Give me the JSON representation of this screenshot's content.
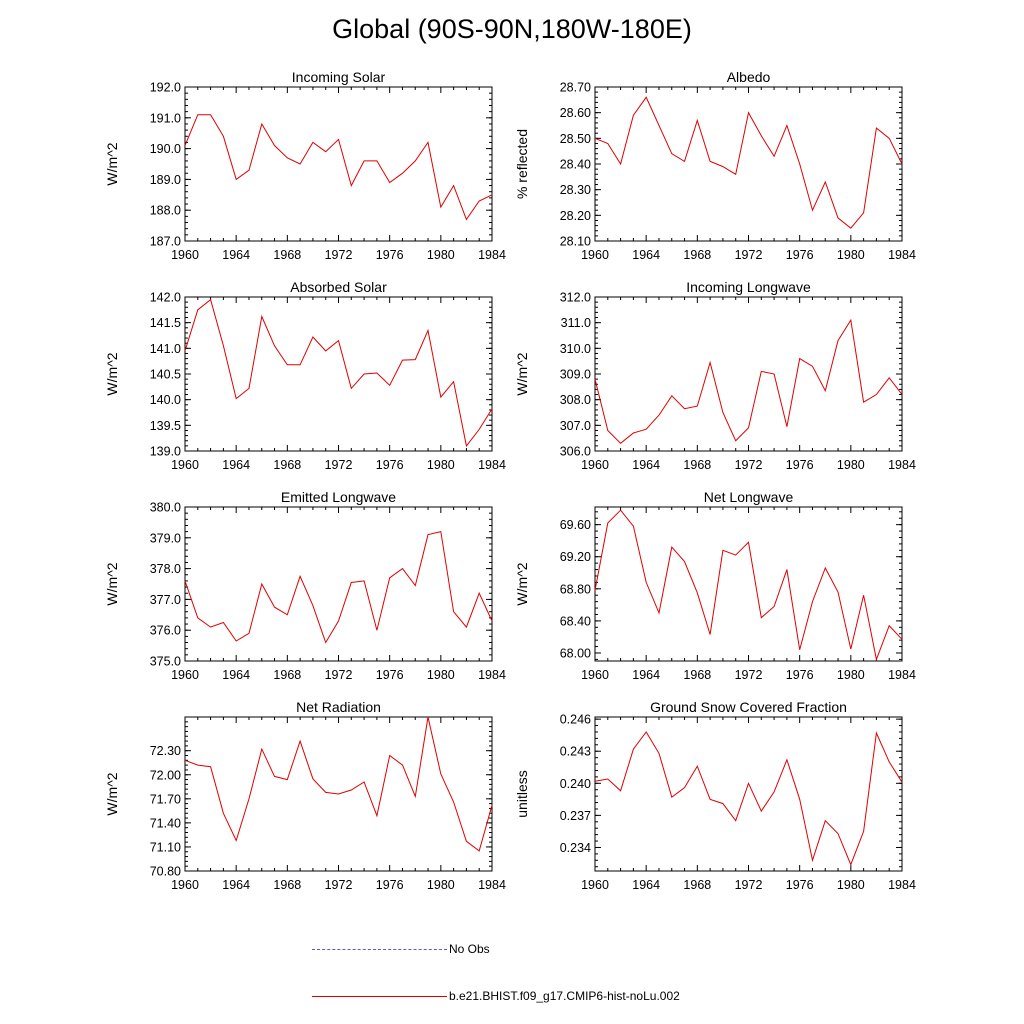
{
  "title": "Global (90S-90N,180W-180E)",
  "colors": {
    "model_line": "#e00000",
    "obs_line": "#5060c8",
    "axis": "#000000"
  },
  "legend": {
    "obs_label": "No Obs",
    "model_label": "b.e21.BHIST.f09_g17.CMIP6-hist-noLu.002"
  },
  "chart_data": [
    {
      "type": "line",
      "title": "Incoming Solar",
      "ylabel": "W/m^2",
      "xlim": [
        1960,
        1984
      ],
      "ylim": [
        187.0,
        192.0
      ],
      "xticks": [
        "1960",
        "1964",
        "1968",
        "1972",
        "1976",
        "1980",
        "1984"
      ],
      "yticks": [
        "187.0",
        "188.0",
        "189.0",
        "190.0",
        "191.0",
        "192.0"
      ],
      "x": [
        1960,
        1961,
        1962,
        1963,
        1964,
        1965,
        1966,
        1967,
        1968,
        1969,
        1970,
        1971,
        1972,
        1973,
        1974,
        1975,
        1976,
        1977,
        1978,
        1979,
        1980,
        1981,
        1982,
        1983,
        1984
      ],
      "series": [
        {
          "name": "b.e21.BHIST.f09_g17.CMIP6-hist-noLu.002",
          "values": [
            190.1,
            191.1,
            191.1,
            190.4,
            189.0,
            189.3,
            190.8,
            190.1,
            189.7,
            189.5,
            190.2,
            189.9,
            190.3,
            188.8,
            189.6,
            189.6,
            188.9,
            189.2,
            189.6,
            190.2,
            188.1,
            188.8,
            187.7,
            188.3,
            188.5
          ]
        }
      ]
    },
    {
      "type": "line",
      "title": "Albedo",
      "ylabel": "% reflected",
      "xlim": [
        1960,
        1984
      ],
      "ylim": [
        28.1,
        28.7
      ],
      "xticks": [
        "1960",
        "1964",
        "1968",
        "1972",
        "1976",
        "1980",
        "1984"
      ],
      "yticks": [
        "28.10",
        "28.20",
        "28.30",
        "28.40",
        "28.50",
        "28.60",
        "28.70"
      ],
      "x": [
        1960,
        1961,
        1962,
        1963,
        1964,
        1965,
        1966,
        1967,
        1968,
        1969,
        1970,
        1971,
        1972,
        1973,
        1974,
        1975,
        1976,
        1977,
        1978,
        1979,
        1980,
        1981,
        1982,
        1983,
        1984
      ],
      "series": [
        {
          "name": "b.e21.BHIST.f09_g17.CMIP6-hist-noLu.002",
          "values": [
            28.5,
            28.48,
            28.4,
            28.59,
            28.66,
            28.55,
            28.44,
            28.41,
            28.57,
            28.41,
            28.39,
            28.36,
            28.6,
            28.51,
            28.43,
            28.55,
            28.4,
            28.22,
            28.33,
            28.19,
            28.15,
            28.21,
            28.54,
            28.5,
            28.4
          ]
        }
      ]
    },
    {
      "type": "line",
      "title": "Absorbed Solar",
      "ylabel": "W/m^2",
      "xlim": [
        1960,
        1984
      ],
      "ylim": [
        139.0,
        142.0
      ],
      "xticks": [
        "1960",
        "1964",
        "1968",
        "1972",
        "1976",
        "1980",
        "1984"
      ],
      "yticks": [
        "139.0",
        "139.5",
        "140.0",
        "140.5",
        "141.0",
        "141.5",
        "142.0"
      ],
      "x": [
        1960,
        1961,
        1962,
        1963,
        1964,
        1965,
        1966,
        1967,
        1968,
        1969,
        1970,
        1971,
        1972,
        1973,
        1974,
        1975,
        1976,
        1977,
        1978,
        1979,
        1980,
        1981,
        1982,
        1983,
        1984
      ],
      "series": [
        {
          "name": "b.e21.BHIST.f09_g17.CMIP6-hist-noLu.002",
          "values": [
            140.95,
            141.75,
            141.95,
            141.05,
            140.02,
            140.22,
            141.62,
            141.05,
            140.68,
            140.68,
            141.22,
            140.95,
            141.15,
            140.22,
            140.5,
            140.52,
            140.28,
            140.77,
            140.78,
            141.35,
            140.05,
            140.35,
            139.1,
            139.42,
            139.82
          ]
        }
      ]
    },
    {
      "type": "line",
      "title": "Incoming Longwave",
      "ylabel": "W/m^2",
      "xlim": [
        1960,
        1984
      ],
      "ylim": [
        306.0,
        312.0
      ],
      "xticks": [
        "1960",
        "1964",
        "1968",
        "1972",
        "1976",
        "1980",
        "1984"
      ],
      "yticks": [
        "306.0",
        "307.0",
        "308.0",
        "309.0",
        "310.0",
        "311.0",
        "312.0"
      ],
      "x": [
        1960,
        1961,
        1962,
        1963,
        1964,
        1965,
        1966,
        1967,
        1968,
        1969,
        1970,
        1971,
        1972,
        1973,
        1974,
        1975,
        1976,
        1977,
        1978,
        1979,
        1980,
        1981,
        1982,
        1983,
        1984
      ],
      "series": [
        {
          "name": "b.e21.BHIST.f09_g17.CMIP6-hist-noLu.002",
          "values": [
            308.8,
            306.8,
            306.3,
            306.7,
            306.85,
            307.4,
            308.15,
            307.65,
            307.75,
            309.45,
            307.5,
            306.4,
            306.9,
            309.1,
            309.0,
            306.95,
            309.6,
            309.3,
            308.35,
            310.3,
            311.1,
            307.9,
            308.2,
            308.85,
            308.2
          ]
        }
      ]
    },
    {
      "type": "line",
      "title": "Emitted Longwave",
      "ylabel": "W/m^2",
      "xlim": [
        1960,
        1984
      ],
      "ylim": [
        375.0,
        380.0
      ],
      "xticks": [
        "1960",
        "1964",
        "1968",
        "1972",
        "1976",
        "1980",
        "1984"
      ],
      "yticks": [
        "375.0",
        "376.0",
        "377.0",
        "378.0",
        "379.0",
        "380.0"
      ],
      "x": [
        1960,
        1961,
        1962,
        1963,
        1964,
        1965,
        1966,
        1967,
        1968,
        1969,
        1970,
        1971,
        1972,
        1973,
        1974,
        1975,
        1976,
        1977,
        1978,
        1979,
        1980,
        1981,
        1982,
        1983,
        1984
      ],
      "series": [
        {
          "name": "b.e21.BHIST.f09_g17.CMIP6-hist-noLu.002",
          "values": [
            377.6,
            376.4,
            376.1,
            376.25,
            375.65,
            375.9,
            377.5,
            376.75,
            376.5,
            377.75,
            376.8,
            375.6,
            376.3,
            377.55,
            377.6,
            376.0,
            377.7,
            378.0,
            377.45,
            379.1,
            379.2,
            376.6,
            376.1,
            377.2,
            376.3
          ]
        }
      ]
    },
    {
      "type": "line",
      "title": "Net Longwave",
      "ylabel": "W/m^2",
      "xlim": [
        1960,
        1984
      ],
      "ylim": [
        67.9,
        69.82
      ],
      "xticks": [
        "1960",
        "1964",
        "1968",
        "1972",
        "1976",
        "1980",
        "1984"
      ],
      "yticks": [
        "68.00",
        "68.40",
        "68.80",
        "69.20",
        "69.60"
      ],
      "x": [
        1960,
        1961,
        1962,
        1963,
        1964,
        1965,
        1966,
        1967,
        1968,
        1969,
        1970,
        1971,
        1972,
        1973,
        1974,
        1975,
        1976,
        1977,
        1978,
        1979,
        1980,
        1981,
        1982,
        1983,
        1984
      ],
      "series": [
        {
          "name": "b.e21.BHIST.f09_g17.CMIP6-hist-noLu.002",
          "values": [
            68.78,
            69.62,
            69.78,
            69.58,
            68.88,
            68.5,
            69.32,
            69.14,
            68.75,
            68.23,
            69.28,
            69.22,
            69.38,
            68.44,
            68.58,
            69.04,
            68.04,
            68.64,
            69.06,
            68.76,
            68.05,
            68.72,
            67.92,
            68.34,
            68.17
          ]
        }
      ]
    },
    {
      "type": "line",
      "title": "Net Radiation",
      "ylabel": "W/m^2",
      "xlim": [
        1960,
        1984
      ],
      "ylim": [
        70.8,
        72.72
      ],
      "xticks": [
        "1960",
        "1964",
        "1968",
        "1972",
        "1976",
        "1980",
        "1984"
      ],
      "yticks": [
        "70.80",
        "71.10",
        "71.40",
        "71.70",
        "72.00",
        "72.30"
      ],
      "x": [
        1960,
        1961,
        1962,
        1963,
        1964,
        1965,
        1966,
        1967,
        1968,
        1969,
        1970,
        1971,
        1972,
        1973,
        1974,
        1975,
        1976,
        1977,
        1978,
        1979,
        1980,
        1981,
        1982,
        1983,
        1984
      ],
      "series": [
        {
          "name": "b.e21.BHIST.f09_g17.CMIP6-hist-noLu.002",
          "values": [
            72.18,
            72.12,
            72.1,
            71.52,
            71.18,
            71.7,
            72.32,
            71.98,
            71.94,
            72.42,
            71.95,
            71.78,
            71.76,
            71.81,
            71.91,
            71.49,
            72.24,
            72.12,
            71.73,
            72.72,
            72.01,
            71.66,
            71.17,
            71.05,
            71.62
          ]
        }
      ]
    },
    {
      "type": "line",
      "title": "Ground Snow Covered Fraction",
      "ylabel": "unitless",
      "xlim": [
        1960,
        1984
      ],
      "ylim": [
        0.2318,
        0.2462
      ],
      "xticks": [
        "1960",
        "1964",
        "1968",
        "1972",
        "1976",
        "1980",
        "1984"
      ],
      "yticks": [
        "0.234",
        "0.237",
        "0.240",
        "0.243",
        "0.246"
      ],
      "x": [
        1960,
        1961,
        1962,
        1963,
        1964,
        1965,
        1966,
        1967,
        1968,
        1969,
        1970,
        1971,
        1972,
        1973,
        1974,
        1975,
        1976,
        1977,
        1978,
        1979,
        1980,
        1981,
        1982,
        1983,
        1984
      ],
      "series": [
        {
          "name": "b.e21.BHIST.f09_g17.CMIP6-hist-noLu.002",
          "values": [
            0.2402,
            0.2404,
            0.2393,
            0.2432,
            0.2448,
            0.2428,
            0.2387,
            0.2396,
            0.2416,
            0.2385,
            0.2381,
            0.2365,
            0.24,
            0.2374,
            0.2392,
            0.2422,
            0.2385,
            0.2328,
            0.2365,
            0.2353,
            0.2324,
            0.2355,
            0.2447,
            0.242,
            0.2401
          ]
        }
      ]
    }
  ]
}
